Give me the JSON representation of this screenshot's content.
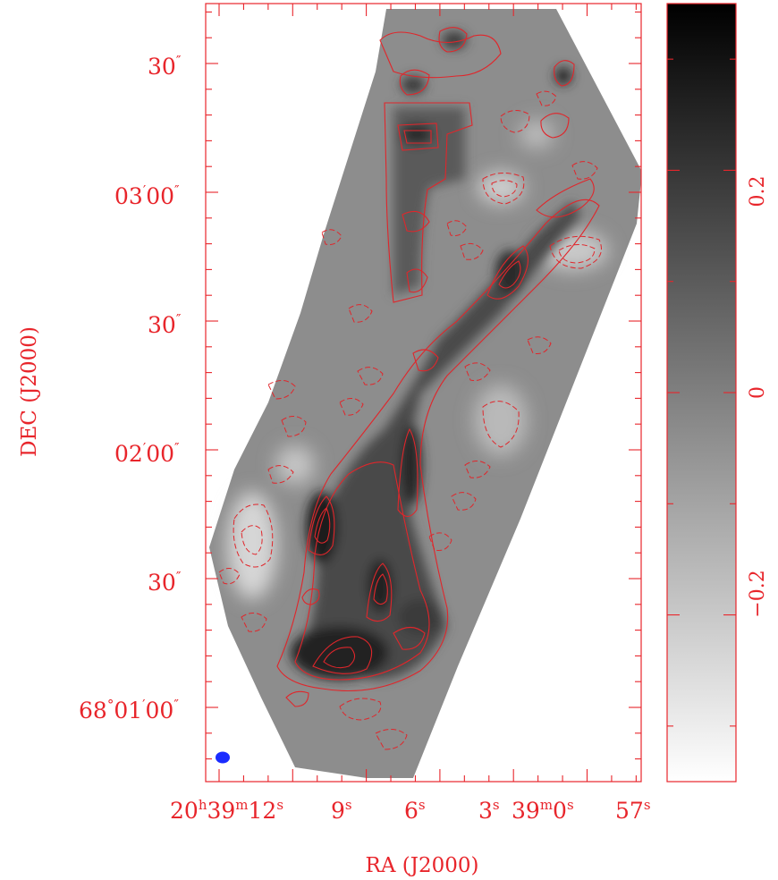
{
  "chart_data": {
    "type": "heatmap",
    "title": "",
    "xlabel": "RA (J2000)",
    "ylabel": "DEC (J2000)",
    "x_ticks": [
      {
        "h": "20",
        "m": "39",
        "s": "12"
      },
      {
        "s": "9"
      },
      {
        "s": "6"
      },
      {
        "s": "3"
      },
      {
        "m": "39",
        "s": "0"
      },
      {
        "s": "57"
      }
    ],
    "y_ticks": [
      "68°01′00″",
      "30″",
      "02′00″",
      "30″",
      "03′00″",
      "30″"
    ],
    "y_tick_parts": [
      {
        "deg": "68",
        "min": "01",
        "sec": "00"
      },
      {
        "sec": "30"
      },
      {
        "min": "02",
        "sec": "00"
      },
      {
        "sec": "30"
      },
      {
        "min": "03",
        "sec": "00"
      },
      {
        "sec": "30"
      }
    ],
    "colorbar": {
      "range": [
        -0.35,
        0.35
      ],
      "ticks": [
        "−0.2",
        "0",
        "0.2"
      ],
      "tick_values": [
        -0.2,
        0,
        0.2
      ],
      "colormap": "grayscale (white low, black high)"
    },
    "contours": {
      "positive": "solid red",
      "negative": "dashed red"
    },
    "beam": {
      "shape": "ellipse",
      "color": "#1a2cff",
      "position": "bottom-left"
    },
    "peaks": [
      {
        "ra_s": 9.0,
        "dec": "68°01′18″",
        "level": "high"
      },
      {
        "ra_s": 9.8,
        "dec": "68°01′43″",
        "level": "high"
      },
      {
        "ra_s": 10.1,
        "dec": "68°01′26″",
        "level": "medium"
      },
      {
        "ra_s": 7.6,
        "dec": "68°01′29″",
        "level": "medium"
      },
      {
        "ra_s": 2.0,
        "dec": "68°02′46″",
        "level": "medium"
      },
      {
        "ra_s": 7.1,
        "dec": "68°03′22″",
        "level": "medium"
      }
    ]
  },
  "colors": {
    "axis": "#e8252b",
    "contour": "#e0262b",
    "beam": "#1a2cff"
  }
}
